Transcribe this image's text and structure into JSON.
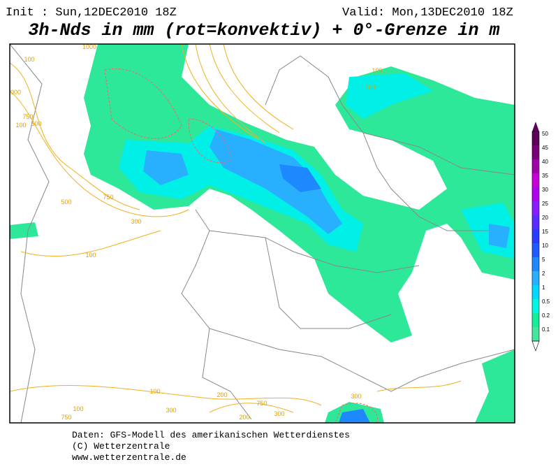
{
  "header": {
    "init": "Init : Sun,12DEC2010 18Z",
    "valid": "Valid: Mon,13DEC2010 18Z",
    "title": "3h-Nds in mm (rot=konvektiv) + 0°-Grenze in m"
  },
  "map": {
    "contour_labels": [
      "1000",
      "100",
      "1000",
      "750",
      "500",
      "100",
      "750",
      "500",
      "300",
      "100",
      "100",
      "100",
      "300",
      "750",
      "200",
      "100",
      "100",
      "300",
      "200",
      "750",
      "300"
    ]
  },
  "legend": {
    "levels": [
      {
        "label": "50",
        "color": "#5c0058"
      },
      {
        "label": "45",
        "color": "#7a0078"
      },
      {
        "label": "40",
        "color": "#a000a8"
      },
      {
        "label": "35",
        "color": "#c800d8"
      },
      {
        "label": "30",
        "color": "#b000f0"
      },
      {
        "label": "25",
        "color": "#8a1cff"
      },
      {
        "label": "20",
        "color": "#5a2cff"
      },
      {
        "label": "15",
        "color": "#2a3cff"
      },
      {
        "label": "10",
        "color": "#1e5cff"
      },
      {
        "label": "5",
        "color": "#1e88ff"
      },
      {
        "label": "2",
        "color": "#28b0ff"
      },
      {
        "label": "1",
        "color": "#00d8ff"
      },
      {
        "label": "0.5",
        "color": "#00f6e0"
      },
      {
        "label": "0.2",
        "color": "#14ee9a"
      },
      {
        "label": "0.1",
        "color": "#44e69c"
      }
    ]
  },
  "footer": [
    "Daten: GFS-Modell des amerikanischen Wetterdienstes",
    "(C) Wetterzentrale",
    "www.wetterzentrale.de"
  ]
}
